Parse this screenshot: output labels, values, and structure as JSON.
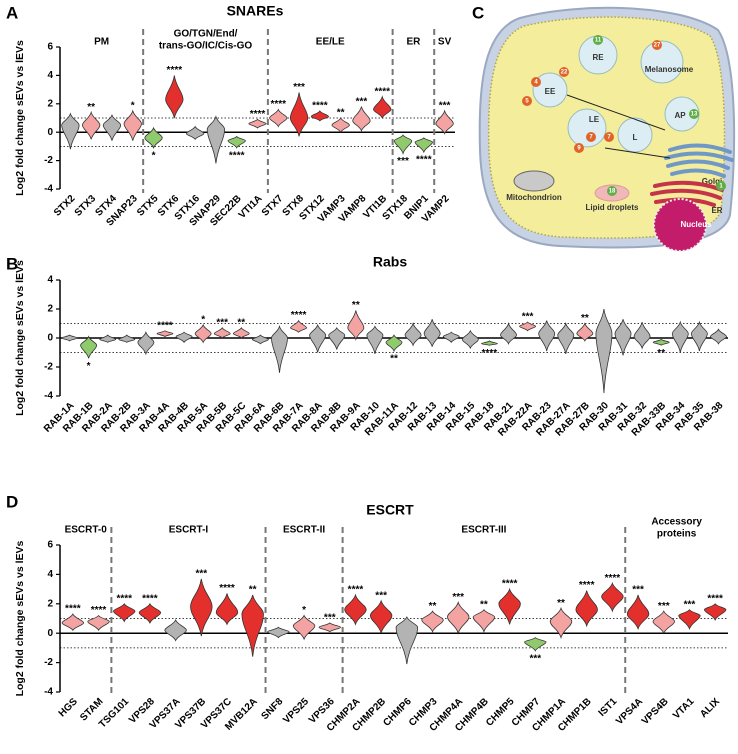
{
  "chart_data": [
    {
      "type": "violin",
      "panel": "A",
      "title": "SNAREs",
      "ylabel": "Log2 fold change sEVs vs lEVs",
      "categories": [
        "STX2",
        "STX3",
        "STX4",
        "SNAP23",
        "STX5",
        "STX6",
        "STX16",
        "SNAP29",
        "SEC22B",
        "VTI1A",
        "STX7",
        "STX8",
        "STX12",
        "VAMP3",
        "VAMP8",
        "VTI1B",
        "STX18",
        "BNIP1",
        "VAMP2"
      ],
      "values": [
        0.5,
        0.5,
        0.5,
        0.6,
        -0.4,
        2.3,
        -0.1,
        0.2,
        -0.6,
        0.6,
        1.0,
        1.0,
        1.1,
        0.5,
        0.8,
        1.6,
        -0.6,
        -0.7,
        0.6
      ],
      "mins": [
        -1.2,
        -0.5,
        -0.6,
        -0.6,
        -1.1,
        1.0,
        -0.5,
        -2.2,
        -1.1,
        0.3,
        0.4,
        -0.3,
        0.8,
        0.0,
        0.1,
        1.0,
        -1.5,
        -1.4,
        -0.1
      ],
      "maxs": [
        1.3,
        1.4,
        1.2,
        1.5,
        0.3,
        4.0,
        0.4,
        1.1,
        -0.3,
        0.9,
        1.6,
        2.8,
        1.5,
        1.0,
        1.8,
        2.5,
        -0.2,
        -0.4,
        1.5
      ],
      "colors": [
        "#b3b3b3",
        "#f4a3a3",
        "#b3b3b3",
        "#f4a3a3",
        "#8fcb6c",
        "#e3302d",
        "#b3b3b3",
        "#b3b3b3",
        "#8fcb6c",
        "#f4a3a3",
        "#f4a3a3",
        "#e3302d",
        "#e3302d",
        "#f4a3a3",
        "#f4a3a3",
        "#e3302d",
        "#8fcb6c",
        "#8fcb6c",
        "#f4a3a3"
      ],
      "significance": [
        null,
        "**",
        null,
        "*",
        "*",
        "****",
        null,
        null,
        "****",
        "****",
        "****",
        "***",
        "****",
        "**",
        "***",
        "****",
        "***",
        "****",
        "***"
      ],
      "groups": [
        {
          "label": [
            "PM"
          ],
          "count": 4
        },
        {
          "label": [
            "GO/TGN/End/",
            "trans-GO/IC/Cis-GO"
          ],
          "count": 6
        },
        {
          "label": [
            "EE/LE"
          ],
          "count": 6
        },
        {
          "label": [
            "ER"
          ],
          "count": 2
        },
        {
          "label": [
            "SV"
          ],
          "count": 1
        }
      ],
      "ylim": [
        -4,
        6
      ],
      "yticks": [
        -4,
        -2,
        0,
        2,
        4,
        6
      ],
      "reference_lines": [
        -1,
        1
      ]
    },
    {
      "type": "violin",
      "panel": "B",
      "title": "Rabs",
      "ylabel": "Log2 fold change sEVs vs lEVs",
      "categories": [
        "RAB-1A",
        "RAB-1B",
        "RAB-2A",
        "RAB-2B",
        "RAB-3A",
        "RAB-4A",
        "RAB-4B",
        "RAB-5A",
        "RAB-5B",
        "RAB-5C",
        "RAB-6A",
        "RAB-6B",
        "RAB-7A",
        "RAB-8A",
        "RAB-8B",
        "RAB-9A",
        "RAB-10",
        "RAB-11A",
        "RAB-12",
        "RAB-13",
        "RAB-14",
        "RAB-15",
        "RAB-18",
        "RAB-21",
        "RAB-22A",
        "RAB-23",
        "RAB-27A",
        "RAB-27B",
        "RAB-30",
        "RAB-31",
        "RAB-32",
        "RAB-33B",
        "RAB-34",
        "RAB-35",
        "RAB-38"
      ],
      "values": [
        0,
        -0.5,
        -0.1,
        -0.1,
        -0.3,
        0.3,
        0.1,
        0.3,
        0.3,
        0.3,
        -0.1,
        0,
        0.7,
        0.2,
        0.2,
        0.7,
        0.2,
        -0.3,
        0.2,
        0.3,
        0.1,
        -0.1,
        -0.4,
        0.2,
        0.8,
        0.3,
        0.2,
        0.3,
        0.3,
        0.3,
        0.1,
        -0.3,
        0.3,
        0.3,
        0.1
      ],
      "mins": [
        -0.2,
        -1.4,
        -0.3,
        -0.3,
        -1.1,
        0.1,
        -0.3,
        -0.3,
        0,
        0,
        -0.4,
        -2.4,
        0.4,
        -1.0,
        -0.8,
        -0.1,
        -1.1,
        -0.9,
        -0.5,
        -0.6,
        -0.3,
        -0.7,
        -0.5,
        -0.4,
        0.5,
        -0.9,
        -1.1,
        -0.2,
        -3.8,
        -1.2,
        -0.7,
        -0.5,
        -1.0,
        -0.9,
        -0.4
      ],
      "maxs": [
        0.2,
        0.1,
        0.2,
        0.2,
        0.4,
        0.5,
        0.4,
        0.9,
        0.7,
        0.7,
        0.2,
        0.8,
        1.2,
        0.9,
        0.7,
        1.9,
        0.8,
        0.2,
        1.0,
        1.3,
        0.4,
        0.5,
        -0.2,
        1.0,
        1.1,
        1.2,
        1.0,
        1.0,
        2.0,
        1.3,
        1.1,
        -0.1,
        1.1,
        1.1,
        0.6
      ],
      "colors": [
        "#b3b3b3",
        "#8fcb6c",
        "#b3b3b3",
        "#b3b3b3",
        "#b3b3b3",
        "#f4a3a3",
        "#b3b3b3",
        "#f4a3a3",
        "#f4a3a3",
        "#f4a3a3",
        "#b3b3b3",
        "#b3b3b3",
        "#f4a3a3",
        "#b3b3b3",
        "#b3b3b3",
        "#f4a3a3",
        "#b3b3b3",
        "#8fcb6c",
        "#b3b3b3",
        "#b3b3b3",
        "#b3b3b3",
        "#b3b3b3",
        "#8fcb6c",
        "#b3b3b3",
        "#f4a3a3",
        "#b3b3b3",
        "#b3b3b3",
        "#f4a3a3",
        "#b3b3b3",
        "#b3b3b3",
        "#b3b3b3",
        "#8fcb6c",
        "#b3b3b3",
        "#b3b3b3",
        "#b3b3b3"
      ],
      "significance": [
        null,
        "*",
        null,
        null,
        null,
        "****",
        null,
        "*",
        "***",
        "**",
        null,
        null,
        "****",
        null,
        null,
        "**",
        null,
        "**",
        null,
        null,
        null,
        null,
        "****",
        null,
        "***",
        null,
        null,
        "**",
        null,
        null,
        null,
        "**",
        null,
        null,
        null
      ],
      "groups": [],
      "ylim": [
        -4,
        4
      ],
      "yticks": [
        -4,
        -2,
        0,
        2,
        4
      ],
      "reference_lines": [
        -1,
        1
      ]
    },
    {
      "type": "violin",
      "panel": "D",
      "title": "ESCRT",
      "ylabel": "Log2 fold change sEVs vs lEVs",
      "categories": [
        "HGS",
        "STAM",
        "TSG101",
        "VPS28",
        "VPS37A",
        "VPS37B",
        "VPS37C",
        "MVB12A",
        "SNF8",
        "VPS25",
        "VPS36",
        "CHMP2A",
        "CHMP2B",
        "CHMP6",
        "CHMP3",
        "CHMP4A",
        "CHMP4B",
        "CHMP5",
        "CHMP7",
        "CHMP1A",
        "CHMP1B",
        "IST1",
        "VPS4A",
        "VPS4B",
        "VTA1",
        "ALIX"
      ],
      "values": [
        0.7,
        0.8,
        1.5,
        1.4,
        0.2,
        1.8,
        1.4,
        1.3,
        0.1,
        0.5,
        0.4,
        1.6,
        1.2,
        0.4,
        0.9,
        1.1,
        1.1,
        2.0,
        -0.6,
        0.8,
        1.6,
        2.5,
        1.3,
        0.8,
        1.2,
        1.6
      ],
      "mins": [
        0.2,
        0.2,
        0.8,
        0.7,
        -0.5,
        -0.2,
        0.6,
        -1.6,
        -0.3,
        -0.4,
        0.1,
        0.6,
        0,
        -2.1,
        0.1,
        0,
        0.1,
        0.6,
        -1.2,
        -0.3,
        0.5,
        1.5,
        0.3,
        0,
        0.3,
        0.9
      ],
      "maxs": [
        1.3,
        1.2,
        2.0,
        2.0,
        0.9,
        3.7,
        2.7,
        2.6,
        0.4,
        1.2,
        0.7,
        2.6,
        2.2,
        1.1,
        1.5,
        2.1,
        1.6,
        3.0,
        -0.3,
        1.7,
        2.9,
        3.4,
        2.6,
        1.5,
        1.6,
        2.0
      ],
      "colors": [
        "#f4a3a3",
        "#f4a3a3",
        "#e3302d",
        "#e3302d",
        "#b3b3b3",
        "#e3302d",
        "#e3302d",
        "#e3302d",
        "#b3b3b3",
        "#f4a3a3",
        "#f4a3a3",
        "#e3302d",
        "#e3302d",
        "#b3b3b3",
        "#f4a3a3",
        "#f4a3a3",
        "#f4a3a3",
        "#e3302d",
        "#8fcb6c",
        "#f4a3a3",
        "#e3302d",
        "#e3302d",
        "#e3302d",
        "#f4a3a3",
        "#e3302d",
        "#e3302d"
      ],
      "significance": [
        "****",
        "****",
        "****",
        "****",
        null,
        "***",
        "****",
        "**",
        null,
        "*",
        "***",
        "****",
        "***",
        null,
        "**",
        "***",
        "**",
        "****",
        "***",
        "**",
        "****",
        "****",
        "***",
        "***",
        "***",
        "****"
      ],
      "groups": [
        {
          "label": [
            "ESCRT-0"
          ],
          "count": 2
        },
        {
          "label": [
            "ESCRT-I"
          ],
          "count": 6
        },
        {
          "label": [
            "ESCRT-II"
          ],
          "count": 3
        },
        {
          "label": [
            "ESCRT-III"
          ],
          "count": 11
        },
        {
          "label": [
            "Accessory",
            "proteins"
          ],
          "count": 4
        }
      ],
      "ylim": [
        -4,
        6
      ],
      "yticks": [
        -4,
        -2,
        0,
        2,
        4,
        6
      ],
      "reference_lines": [
        -1,
        1
      ]
    }
  ],
  "diagram": {
    "panel": "C",
    "labels": {
      "re": "RE",
      "melanosome": "Melanosome",
      "ee": "EE",
      "le": "LE",
      "l": "L",
      "ap": "AP",
      "golgi": "Golgi",
      "er": "ER",
      "mitochondrion": "Mitochondrion",
      "lipid": "Lipid droplets",
      "nucleus": "Nucleus"
    },
    "badges": [
      "11",
      "27",
      "22",
      "4",
      "5",
      "7",
      "7",
      "9",
      "13",
      "18",
      "1"
    ]
  }
}
